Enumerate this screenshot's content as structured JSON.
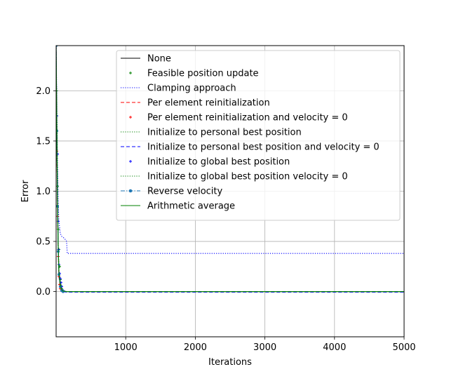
{
  "chart_data": {
    "type": "line",
    "title": "",
    "xlabel": "Iterations",
    "ylabel": "Error",
    "xlim": [
      0,
      5000
    ],
    "ylim": [
      -0.45,
      2.45
    ],
    "xticks": [
      1000,
      2000,
      3000,
      4000,
      5000
    ],
    "xtick_labels": [
      "1000",
      "2000",
      "3000",
      "4000",
      "5000"
    ],
    "yticks": [
      0.0,
      0.5,
      1.0,
      1.5,
      2.0
    ],
    "ytick_labels": [
      "0.0",
      "0.5",
      "1.0",
      "1.5",
      "2.0"
    ],
    "grid": true,
    "legend_position": "top-right",
    "series": [
      {
        "name": "None",
        "color": "#000000",
        "linestyle": "solid",
        "marker": "none",
        "x": [
          0,
          10,
          20,
          30,
          40,
          60,
          80,
          100,
          150,
          200,
          5000
        ],
        "y": [
          2.45,
          1.6,
          0.9,
          0.45,
          0.2,
          0.06,
          0.02,
          0.005,
          0.0,
          0.0,
          0.0
        ]
      },
      {
        "name": "Feasible position update",
        "color": "#008000",
        "linestyle": "none",
        "marker": "plus",
        "x": [
          5,
          10,
          20,
          30,
          40,
          50,
          60,
          70,
          80,
          100
        ],
        "y": [
          2.0,
          1.75,
          1.05,
          0.62,
          0.42,
          0.25,
          0.12,
          0.06,
          0.03,
          0.01
        ]
      },
      {
        "name": "Clamping approach",
        "color": "#0000ff",
        "linestyle": "dotted",
        "marker": "none",
        "x": [
          0,
          10,
          20,
          30,
          40,
          60,
          80,
          100,
          120,
          150,
          160,
          200,
          5000
        ],
        "y": [
          2.45,
          1.9,
          1.3,
          0.9,
          0.7,
          0.58,
          0.55,
          0.54,
          0.53,
          0.5,
          0.38,
          0.38,
          0.38
        ]
      },
      {
        "name": "Per element reinitialization",
        "color": "#ff0000",
        "linestyle": "dashed",
        "marker": "none",
        "x": [
          0,
          10,
          20,
          30,
          40,
          60,
          80,
          100,
          150,
          5000
        ],
        "y": [
          2.45,
          1.5,
          0.8,
          0.4,
          0.15,
          0.05,
          0.015,
          0.0,
          0.0,
          0.0
        ]
      },
      {
        "name": "Per element reinitialization and velocity = 0",
        "color": "#ff0000",
        "linestyle": "none",
        "marker": "plus",
        "x": [
          10,
          20,
          30,
          40,
          50,
          60,
          80,
          100
        ],
        "y": [
          1.4,
          0.75,
          0.35,
          0.15,
          0.07,
          0.03,
          0.01,
          0.0
        ]
      },
      {
        "name": "Initialize to personal best position",
        "color": "#008000",
        "linestyle": "dotted",
        "marker": "none",
        "x": [
          0,
          10,
          20,
          30,
          40,
          60,
          80,
          100,
          150,
          5000
        ],
        "y": [
          2.45,
          1.7,
          0.95,
          0.5,
          0.22,
          0.08,
          0.03,
          0.01,
          0.0,
          0.0
        ]
      },
      {
        "name": "Initialize to personal best position and velocity = 0",
        "color": "#0000ff",
        "linestyle": "dashed",
        "marker": "none",
        "x": [
          0,
          10,
          20,
          30,
          40,
          60,
          80,
          100,
          150,
          5000
        ],
        "y": [
          2.45,
          1.65,
          0.9,
          0.45,
          0.2,
          0.07,
          0.02,
          0.0,
          -0.005,
          -0.005
        ]
      },
      {
        "name": "Initialize to global best position",
        "color": "#0000ff",
        "linestyle": "none",
        "marker": "plus",
        "x": [
          10,
          20,
          30,
          35,
          40,
          50,
          60,
          70,
          80,
          100
        ],
        "y": [
          1.75,
          1.37,
          0.7,
          0.42,
          0.27,
          0.18,
          0.13,
          0.09,
          0.05,
          0.01
        ]
      },
      {
        "name": "Initialize to global best position velocity = 0",
        "color": "#008000",
        "linestyle": "dotted",
        "marker": "none",
        "x": [
          0,
          10,
          20,
          30,
          40,
          60,
          80,
          100,
          150,
          5000
        ],
        "y": [
          2.45,
          1.55,
          0.85,
          0.42,
          0.18,
          0.06,
          0.02,
          0.0,
          0.0,
          0.0
        ]
      },
      {
        "name": "Reverse velocity",
        "color": "#1f77b4",
        "linestyle": "dashdot",
        "marker": "circle",
        "x": [
          0,
          10,
          20,
          30,
          40,
          60,
          80,
          100,
          150,
          5000
        ],
        "y": [
          2.45,
          1.6,
          0.85,
          0.4,
          0.17,
          0.05,
          0.01,
          0.0,
          0.0,
          0.0
        ]
      },
      {
        "name": "Arithmetic average",
        "color": "#008000",
        "linestyle": "solid",
        "marker": "none",
        "x": [
          0,
          10,
          20,
          30,
          40,
          60,
          80,
          100,
          150,
          5000
        ],
        "y": [
          2.45,
          1.7,
          0.9,
          0.45,
          0.2,
          0.07,
          0.02,
          0.005,
          0.0,
          0.0
        ]
      }
    ]
  }
}
